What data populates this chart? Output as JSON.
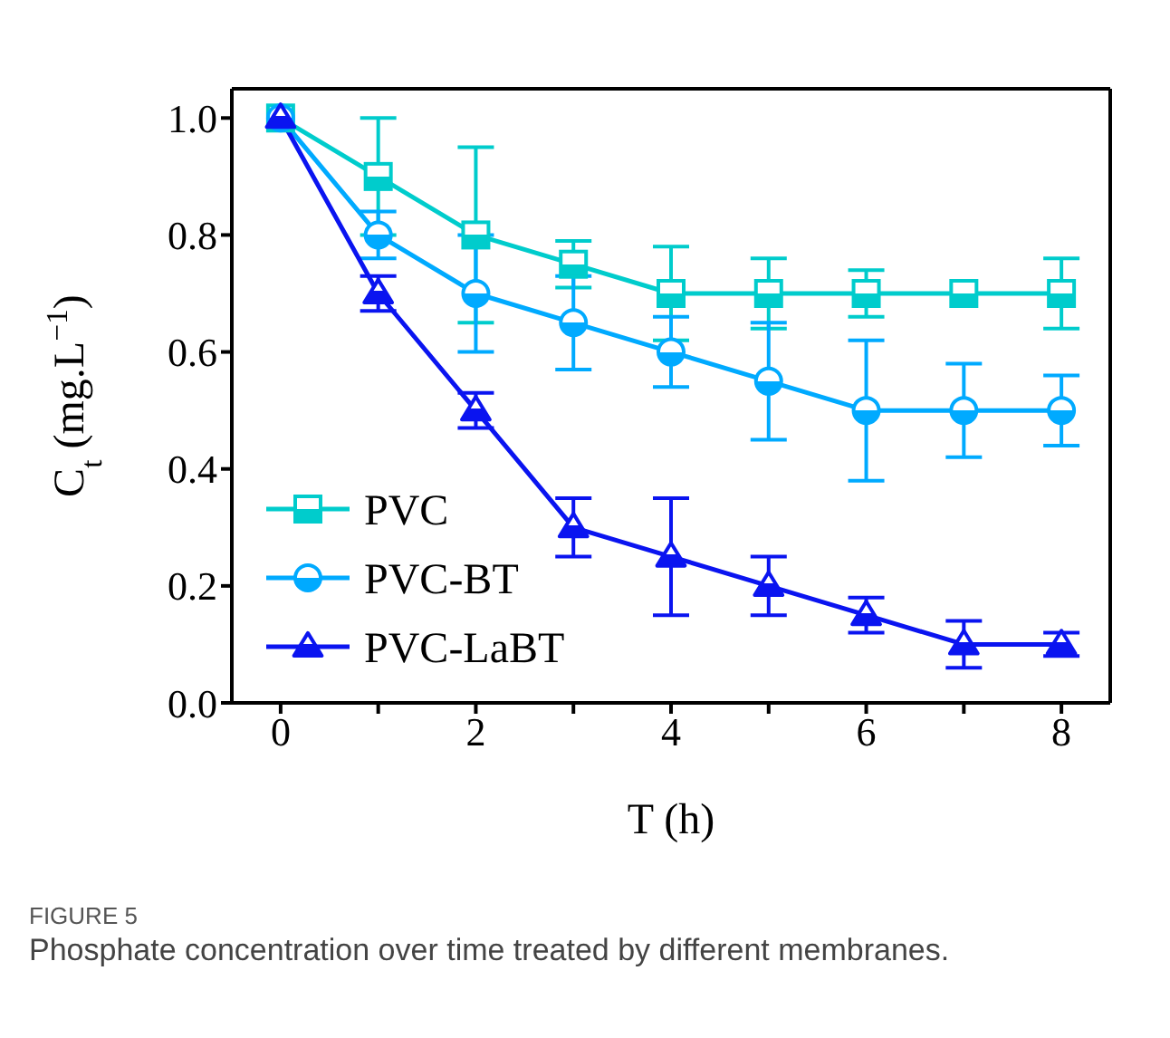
{
  "chart_data": {
    "type": "line",
    "xlabel": "T (h)",
    "ylabel": "C$_{t}$ (mg.L$^{−1}$)",
    "x": [
      0,
      1,
      2,
      3,
      4,
      5,
      6,
      7,
      8
    ],
    "xlim": [
      -0.5,
      8.5
    ],
    "xticks": [
      0,
      {
        "value": 1,
        "label": null
      },
      2,
      {
        "value": 3,
        "label": null
      },
      4,
      {
        "value": 5,
        "label": null
      },
      6,
      {
        "value": 7,
        "label": null
      },
      8
    ],
    "ylim": [
      0,
      1.05
    ],
    "yticks": [
      {
        "value": 0,
        "label": "0.0"
      },
      {
        "value": 0.2,
        "label": "0.2"
      },
      {
        "value": 0.4,
        "label": "0.4"
      },
      {
        "value": 0.6,
        "label": "0.6"
      },
      {
        "value": 0.8,
        "label": "0.8"
      },
      {
        "value": 1,
        "label": "1.0"
      }
    ],
    "series": [
      {
        "name": "PVC",
        "color": "#00cccc",
        "marker": "square",
        "values": [
          1.0,
          0.9,
          0.8,
          0.75,
          0.7,
          0.7,
          0.7,
          0.7,
          0.7
        ],
        "errors": [
          null,
          0.1,
          0.15,
          0.04,
          0.08,
          0.06,
          0.04,
          null,
          0.06
        ]
      },
      {
        "name": "PVC-BT",
        "color": "#00aaff",
        "marker": "circle",
        "values": [
          1.0,
          0.8,
          0.7,
          0.65,
          0.6,
          0.55,
          0.5,
          0.5,
          0.5
        ],
        "errors": [
          null,
          0.04,
          0.1,
          0.08,
          0.06,
          0.1,
          0.12,
          0.08,
          0.06
        ]
      },
      {
        "name": "PVC-LaBT",
        "color": "#0a14f0",
        "marker": "triangle",
        "values": [
          1.0,
          0.7,
          0.5,
          0.3,
          0.25,
          0.2,
          0.15,
          0.1,
          0.1
        ],
        "errors": [
          null,
          0.03,
          0.03,
          0.05,
          0.1,
          0.05,
          0.03,
          0.04,
          0.02
        ]
      }
    ],
    "legend": "bottom left",
    "grid": false,
    "annotations": [
      "FIGURE 5",
      "Phosphate concentration over time treated by different membranes."
    ]
  }
}
